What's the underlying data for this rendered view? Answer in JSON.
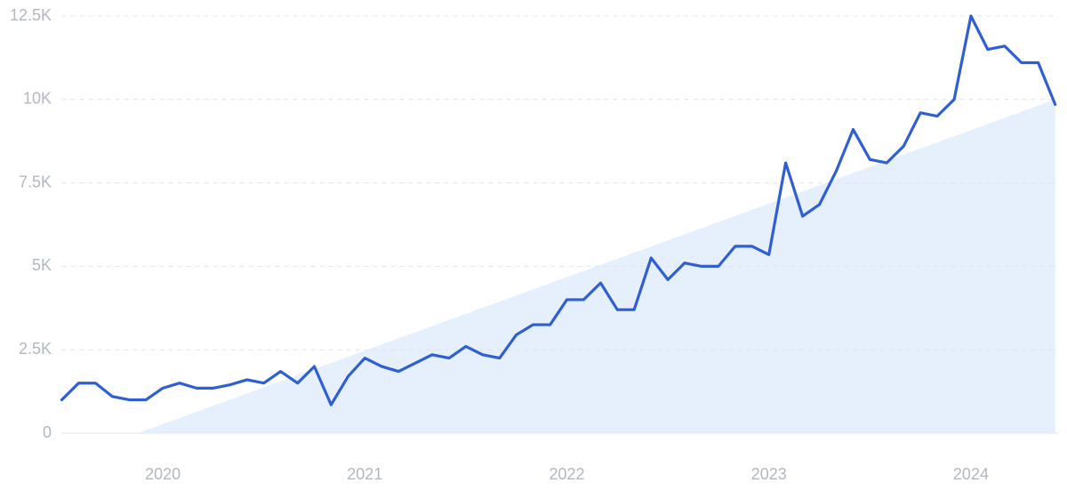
{
  "chart_data": {
    "type": "line",
    "x": [
      2019.5,
      2019.583,
      2019.667,
      2019.75,
      2019.833,
      2019.917,
      2020,
      2020.083,
      2020.167,
      2020.25,
      2020.333,
      2020.417,
      2020.5,
      2020.583,
      2020.667,
      2020.75,
      2020.833,
      2020.917,
      2021,
      2021.083,
      2021.167,
      2021.25,
      2021.333,
      2021.417,
      2021.5,
      2021.583,
      2021.667,
      2021.75,
      2021.833,
      2021.917,
      2022,
      2022.083,
      2022.167,
      2022.25,
      2022.333,
      2022.417,
      2022.5,
      2022.583,
      2022.667,
      2022.75,
      2022.833,
      2022.917,
      2023,
      2023.083,
      2023.167,
      2023.25,
      2023.333,
      2023.417,
      2023.5,
      2023.583,
      2023.667,
      2023.75,
      2023.833,
      2023.917,
      2024,
      2024.083,
      2024.167,
      2024.25,
      2024.333,
      2024.417
    ],
    "series": [
      {
        "color": "#2f5fd3",
        "values": [
          1000,
          1500,
          1500,
          1100,
          1000,
          1000,
          1350,
          1500,
          1350,
          1350,
          1450,
          1600,
          1500,
          1850,
          1500,
          2000,
          850,
          1700,
          2250,
          2000,
          1850,
          2100,
          2350,
          2250,
          2600,
          2350,
          2250,
          2950,
          3250,
          3250,
          4000,
          4000,
          4500,
          3700,
          3700,
          5250,
          4600,
          5100,
          5000,
          5000,
          5600,
          5600,
          5350,
          8100,
          6500,
          6850,
          7850,
          9100,
          8200,
          8100,
          8600,
          9600,
          9500,
          10000,
          12500,
          11500,
          11600,
          11100,
          11100,
          9850
        ]
      }
    ],
    "trend": {
      "color": "#e6effc",
      "x": [
        2019.877,
        2024.417
      ],
      "values": [
        0,
        10000
      ]
    },
    "xlim": [
      2019.5,
      2024.417
    ],
    "xticks": [
      2020,
      2021,
      2022,
      2023,
      2024
    ],
    "ylim": [
      0,
      12500
    ],
    "yticks": [
      0,
      {
        "value": 2500,
        "label": "2.5K"
      },
      {
        "value": 5000,
        "label": "5K"
      },
      {
        "value": 7500,
        "label": "7.5K"
      },
      {
        "value": 10000,
        "label": "10K"
      },
      {
        "value": 12500,
        "label": "12.5K"
      }
    ],
    "grid": true
  }
}
